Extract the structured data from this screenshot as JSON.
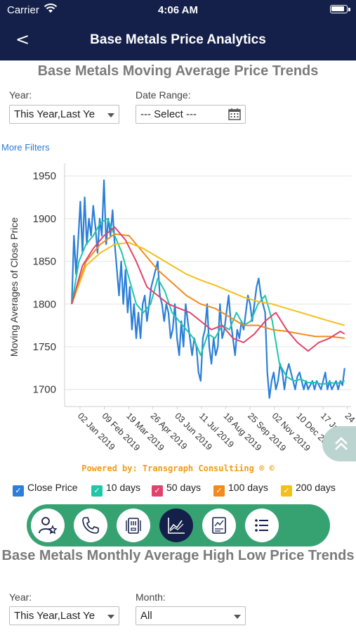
{
  "status": {
    "carrier": "Carrier",
    "time": "4:06 AM"
  },
  "nav": {
    "back_glyph": "<",
    "title": "Base Metals Price Analytics"
  },
  "section1": {
    "title": "Base Metals Moving Average Price Trends",
    "year_label": "Year:",
    "year_value": "This Year,Last Ye",
    "range_label": "Date Range:",
    "range_value": "--- Select ---",
    "more_filters": "More Filters"
  },
  "powered_by": "Powered by: Transgraph Consultiing ® ©",
  "legend": [
    {
      "label": "Close Price",
      "color": "#2b7fd9"
    },
    {
      "label": "10 days",
      "color": "#1fc6a8"
    },
    {
      "label": "50 days",
      "color": "#e0436b"
    },
    {
      "label": "100 days",
      "color": "#f28a1d"
    },
    {
      "label": "200 days",
      "color": "#f5bf1b"
    }
  ],
  "chart_data": {
    "type": "line",
    "ylabel": "Moving Averages of Close Price",
    "xlabel": "",
    "ylim": [
      1680,
      1960
    ],
    "yticks": [
      1700,
      1750,
      1800,
      1850,
      1900,
      1950
    ],
    "x_tick_labels": [
      "02 Jan 2019",
      "09 Feb 2019",
      "19 Mar 2019",
      "26 Apr 2019",
      "03 Jun 2019",
      "11 Jul 2019",
      "18 Aug 2019",
      "25 Sep 2019",
      "02 Nov 2019",
      "10 Dec 2019",
      "17 Jan 2020",
      "24"
    ],
    "x_range_days": [
      -10,
      390
    ],
    "grid": true,
    "series": [
      {
        "name": "Close Price",
        "x": [
          0,
          3,
          6,
          9,
          12,
          15,
          18,
          21,
          24,
          27,
          30,
          33,
          36,
          39,
          42,
          45,
          48,
          51,
          54,
          57,
          60,
          63,
          66,
          69,
          72,
          75,
          78,
          81,
          84,
          87,
          90,
          93,
          96,
          99,
          102,
          105,
          108,
          111,
          114,
          117,
          120,
          123,
          126,
          129,
          132,
          135,
          138,
          141,
          144,
          147,
          150,
          153,
          156,
          159,
          162,
          165,
          168,
          171,
          174,
          177,
          180,
          183,
          186,
          189,
          192,
          195,
          198,
          201,
          204,
          207,
          210,
          213,
          216,
          219,
          222,
          225,
          228,
          231,
          234,
          237,
          240,
          243,
          246,
          249,
          252,
          255,
          258,
          261,
          264,
          267,
          270,
          273,
          276,
          279,
          282,
          285,
          288,
          291,
          294,
          297,
          300,
          303,
          306,
          309,
          312,
          315,
          318,
          321,
          324,
          327,
          330,
          333,
          336,
          339,
          342,
          345,
          348,
          351,
          354,
          357,
          360,
          363,
          366,
          369,
          372,
          375,
          378,
          381
        ],
        "y": [
          1800,
          1880,
          1835,
          1875,
          1920,
          1860,
          1925,
          1870,
          1900,
          1880,
          1915,
          1890,
          1860,
          1900,
          1880,
          1945,
          1870,
          1900,
          1880,
          1910,
          1870,
          1840,
          1810,
          1850,
          1800,
          1840,
          1790,
          1820,
          1770,
          1800,
          1760,
          1790,
          1760,
          1800,
          1810,
          1780,
          1800,
          1820,
          1830,
          1840,
          1850,
          1810,
          1800,
          1780,
          1800,
          1790,
          1760,
          1770,
          1800,
          1760,
          1740,
          1780,
          1750,
          1800,
          1780,
          1760,
          1740,
          1760,
          1750,
          1720,
          1710,
          1760,
          1770,
          1800,
          1750,
          1730,
          1760,
          1740,
          1750,
          1800,
          1760,
          1770,
          1790,
          1810,
          1780,
          1760,
          1740,
          1770,
          1760,
          1780,
          1770,
          1790,
          1810,
          1800,
          1780,
          1800,
          1820,
          1830,
          1810,
          1800,
          1790,
          1720,
          1690,
          1710,
          1720,
          1700,
          1710,
          1730,
          1720,
          1700,
          1720,
          1730,
          1720,
          1710,
          1700,
          1715,
          1720,
          1710,
          1700,
          1710,
          1700,
          1705,
          1710,
          1700,
          1710,
          1705,
          1700,
          1710,
          1720,
          1700,
          1710,
          1700,
          1705,
          1710,
          1700,
          1710,
          1705,
          1725
        ]
      },
      {
        "name": "10 days",
        "x": [
          0,
          10,
          20,
          30,
          40,
          50,
          60,
          70,
          80,
          90,
          100,
          110,
          120,
          130,
          140,
          150,
          160,
          170,
          180,
          190,
          200,
          210,
          220,
          230,
          240,
          250,
          260,
          270,
          280,
          290,
          300,
          310,
          320,
          330,
          340,
          350,
          360,
          370,
          381
        ],
        "y": [
          1800,
          1850,
          1870,
          1880,
          1895,
          1900,
          1880,
          1860,
          1830,
          1800,
          1790,
          1800,
          1830,
          1815,
          1790,
          1780,
          1770,
          1760,
          1740,
          1765,
          1760,
          1775,
          1770,
          1790,
          1775,
          1780,
          1800,
          1810,
          1780,
          1730,
          1715,
          1710,
          1712,
          1708,
          1708,
          1706,
          1708,
          1707,
          1710
        ]
      },
      {
        "name": "50 days",
        "x": [
          0,
          15,
          30,
          45,
          60,
          75,
          90,
          105,
          120,
          135,
          150,
          165,
          180,
          195,
          210,
          225,
          240,
          255,
          270,
          285,
          300,
          315,
          330,
          345,
          360,
          375,
          381
        ],
        "y": [
          1800,
          1845,
          1865,
          1880,
          1890,
          1875,
          1850,
          1820,
          1810,
          1800,
          1795,
          1790,
          1780,
          1770,
          1775,
          1760,
          1755,
          1765,
          1780,
          1790,
          1770,
          1755,
          1745,
          1755,
          1760,
          1768,
          1765
        ]
      },
      {
        "name": "100 days",
        "x": [
          0,
          20,
          40,
          60,
          80,
          100,
          120,
          140,
          160,
          180,
          200,
          220,
          240,
          260,
          280,
          300,
          320,
          340,
          360,
          381
        ],
        "y": [
          1800,
          1850,
          1870,
          1882,
          1880,
          1860,
          1840,
          1825,
          1810,
          1800,
          1795,
          1785,
          1775,
          1775,
          1770,
          1768,
          1765,
          1762,
          1762,
          1760
        ]
      },
      {
        "name": "200 days",
        "x": [
          0,
          20,
          40,
          60,
          80,
          100,
          120,
          140,
          160,
          180,
          200,
          220,
          240,
          260,
          280,
          300,
          320,
          340,
          360,
          381
        ],
        "y": [
          1800,
          1845,
          1860,
          1870,
          1872,
          1865,
          1855,
          1845,
          1835,
          1828,
          1822,
          1815,
          1808,
          1803,
          1800,
          1795,
          1790,
          1785,
          1780,
          1775
        ]
      }
    ]
  },
  "section2": {
    "title": "Base Metals Monthly Average High Low Price Trends",
    "year_label": "Year:",
    "year_value": "This Year,Last Ye",
    "month_label": "Month:",
    "month_value": "All"
  },
  "bottom_nav": [
    {
      "icon": "user-star-icon"
    },
    {
      "icon": "phone-icon"
    },
    {
      "icon": "cards-icon"
    },
    {
      "icon": "chart-icon"
    },
    {
      "icon": "report-icon"
    },
    {
      "icon": "list-icon"
    }
  ]
}
